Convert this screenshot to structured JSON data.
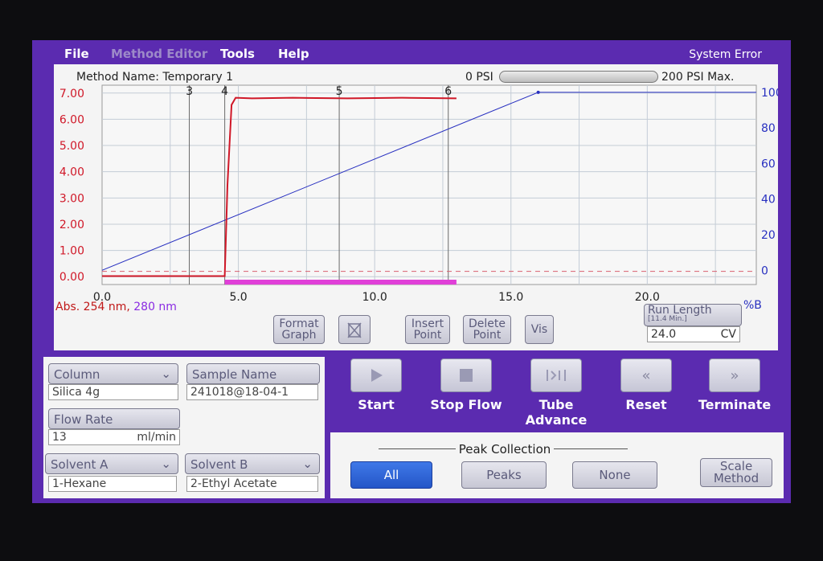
{
  "menu": {
    "file": "File",
    "method_editor": "Method Editor",
    "tools": "Tools",
    "help": "Help",
    "status": "System Error"
  },
  "header": {
    "method_name": "Method Name: Temporary 1",
    "psi_min": "0 PSI",
    "psi_max": "200 PSI Max.",
    "pressure_fraction": 0
  },
  "colors": {
    "absorbance": "#d01828",
    "gradient": "#2830c0",
    "collection_bar": "#e040d8",
    "accent": "#5b2bb0",
    "selected_button": "#2f64dc"
  },
  "chart_data": {
    "type": "line",
    "x_ticks": [
      "0.0",
      "5.0",
      "10.0",
      "15.0",
      "20.0"
    ],
    "x_range": [
      0,
      24
    ],
    "y_left_ticks": [
      "0.00",
      "1.00",
      "2.00",
      "3.00",
      "4.00",
      "5.00",
      "6.00",
      "7.00"
    ],
    "y_left_range": [
      -0.3,
      7.3
    ],
    "y_right_ticks": [
      "0",
      "20",
      "40",
      "60",
      "80",
      "100"
    ],
    "y_right_range": [
      -8,
      104
    ],
    "right_axis_label": "%B",
    "detector_label_1": "Abs. 254 nm,",
    "detector_label_2": "280 nm",
    "fraction_markers": [
      {
        "label": "3",
        "x": 3.2
      },
      {
        "label": "4",
        "x": 4.5
      },
      {
        "label": "5",
        "x": 8.7
      },
      {
        "label": "6",
        "x": 12.7
      }
    ],
    "series": [
      {
        "axis": "left",
        "points": [
          [
            0,
            0.02
          ],
          [
            4.5,
            0.02
          ],
          [
            4.6,
            3.5
          ],
          [
            4.75,
            6.55
          ],
          [
            4.9,
            6.82
          ],
          [
            5.5,
            6.8
          ],
          [
            7,
            6.82
          ],
          [
            9,
            6.8
          ],
          [
            11,
            6.82
          ],
          [
            13,
            6.8
          ]
        ]
      },
      {
        "axis": "right",
        "points": [
          [
            0,
            0
          ],
          [
            16,
            100
          ],
          [
            24,
            100
          ]
        ]
      }
    ],
    "threshold": 0.2,
    "collection_range": [
      4.5,
      13
    ],
    "grid": true
  },
  "graph_buttons": {
    "format": "Format Graph",
    "insert": "Insert Point",
    "delete": "Delete Point",
    "vis": "Vis"
  },
  "run_length": {
    "label": "Run Length",
    "sub": "[11.4 Min.]",
    "value": "24.0",
    "unit": "CV"
  },
  "params": {
    "column_label": "Column",
    "column_value": "Silica 4g",
    "sample_label": "Sample Name",
    "sample_value": "241018@18-04-1",
    "flow_label": "Flow Rate",
    "flow_value": "13",
    "flow_unit": "ml/min",
    "solvent_a_label": "Solvent A",
    "solvent_a_value": "1-Hexane",
    "solvent_b_label": "Solvent B",
    "solvent_b_value": "2-Ethyl Acetate"
  },
  "controls": {
    "start": "Start",
    "stop": "Stop Flow",
    "tube": "Tube Advance",
    "reset": "Reset",
    "terminate": "Terminate"
  },
  "peak": {
    "title": "Peak Collection",
    "all": "All",
    "peaks": "Peaks",
    "none": "None",
    "scale": "Scale Method"
  }
}
